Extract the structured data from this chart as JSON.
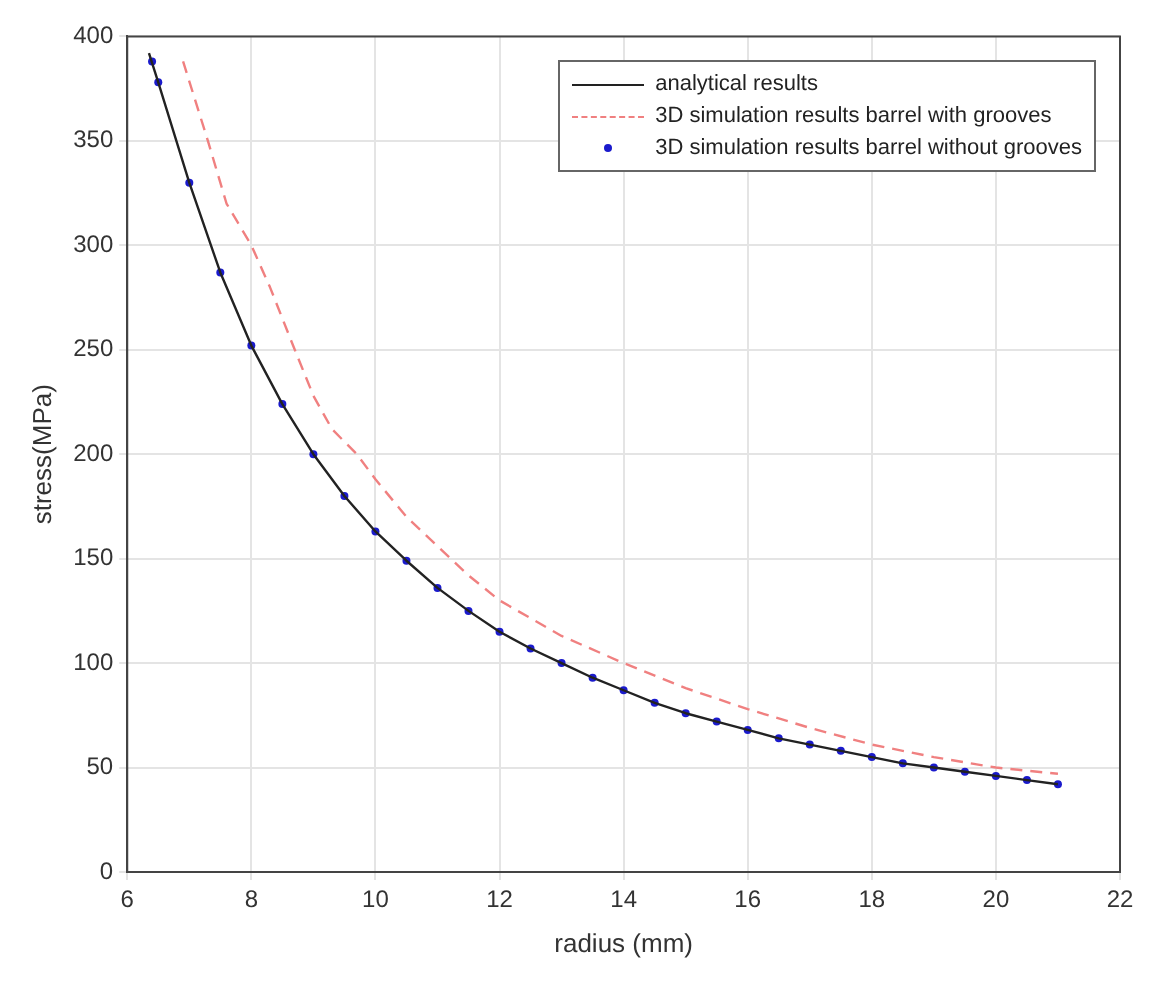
{
  "chart_data": {
    "type": "line",
    "xlabel": "radius (mm)",
    "ylabel": "stress(MPa)",
    "xlim": [
      6,
      22
    ],
    "ylim": [
      0,
      400
    ],
    "xticks": [
      6,
      8,
      10,
      12,
      14,
      16,
      18,
      20,
      22
    ],
    "yticks": [
      0,
      50,
      100,
      150,
      200,
      250,
      300,
      350,
      400
    ],
    "grid": true,
    "legend": "top right",
    "series": [
      {
        "name": "analytical results",
        "type": "line",
        "color": "#222222",
        "line_style": "solid",
        "marker": "none",
        "x": [
          6.35,
          6.5,
          7,
          7.5,
          8,
          8.5,
          9,
          9.5,
          10,
          10.5,
          11,
          11.5,
          12,
          12.5,
          13,
          13.5,
          14,
          14.5,
          15,
          15.5,
          16,
          16.5,
          17,
          17.5,
          18,
          18.5,
          19,
          19.5,
          20,
          20.5,
          21
        ],
        "values": [
          392,
          378,
          330,
          287,
          252,
          224,
          200,
          180,
          163,
          149,
          136,
          125,
          115,
          107,
          100,
          93,
          87,
          81,
          76,
          72,
          68,
          64,
          61,
          58,
          55,
          52,
          50,
          48,
          46,
          44,
          42
        ]
      },
      {
        "name": "3D simulation results barrel with grooves",
        "type": "line",
        "color": "#f08080",
        "line_style": "dashed",
        "marker": "none",
        "x": [
          6.9,
          7.3,
          7.6,
          8,
          8.3,
          8.7,
          9,
          9.3,
          9.7,
          10,
          10.5,
          11,
          11.5,
          12,
          13,
          14,
          15,
          16,
          17,
          18,
          19,
          20,
          21
        ],
        "values": [
          388,
          350,
          320,
          300,
          280,
          250,
          228,
          212,
          200,
          188,
          170,
          156,
          142,
          130,
          113,
          100,
          88,
          78,
          69,
          61,
          55,
          50,
          47
        ]
      },
      {
        "name": "3D simulation results barrel without grooves",
        "type": "scatter",
        "color": "#1a1acc",
        "marker": "circle",
        "x": [
          6.4,
          6.5,
          7,
          7.5,
          8,
          8.5,
          9,
          9.5,
          10,
          10.5,
          11,
          11.5,
          12,
          12.5,
          13,
          13.5,
          14,
          14.5,
          15,
          15.5,
          16,
          16.5,
          17,
          17.5,
          18,
          18.5,
          19,
          19.5,
          20,
          20.5,
          21
        ],
        "values": [
          388,
          378,
          330,
          287,
          252,
          224,
          200,
          180,
          163,
          149,
          136,
          125,
          115,
          107,
          100,
          93,
          87,
          81,
          76,
          72,
          68,
          64,
          61,
          58,
          55,
          52,
          50,
          48,
          46,
          44,
          42
        ]
      }
    ]
  }
}
